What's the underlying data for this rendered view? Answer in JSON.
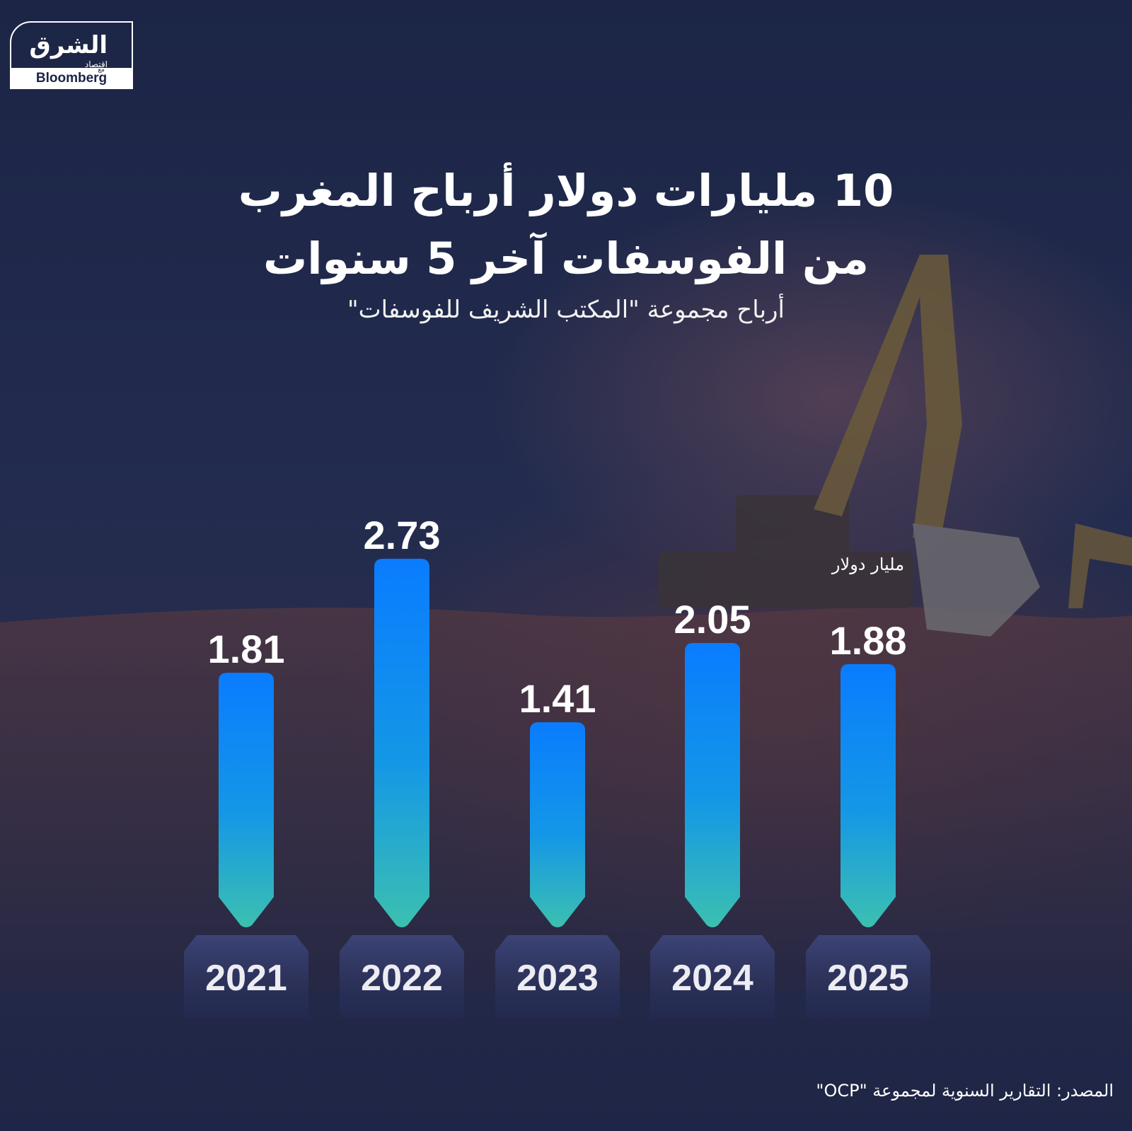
{
  "logo": {
    "brand": "الشرق",
    "sub": "اقتصاد",
    "with": "مع",
    "partner": "Bloomberg"
  },
  "title_line1": "10 مليارات دولار أرباح المغرب",
  "title_line2": "من الفوسفات آخر 5 سنوات",
  "subtitle": "أرباح مجموعة \"المكتب الشريف للفوسفات\"",
  "unit_label": "مليار دولار",
  "source": "المصدر: التقارير السنوية لمجموعة \"OCP\"",
  "colors": {
    "bar_top": "#0a7cff",
    "bar_bottom": "#3cc0b0",
    "background": "#1c2546"
  },
  "chart_data": {
    "type": "bar",
    "categories": [
      "2021",
      "2022",
      "2023",
      "2024",
      "2025"
    ],
    "values": [
      1.81,
      2.73,
      1.41,
      2.05,
      1.88
    ],
    "value_labels": [
      "1.81",
      "2.73",
      "1.41",
      "2.05",
      "1.88"
    ],
    "title": "10 مليارات دولار أرباح المغرب من الفوسفات آخر 5 سنوات",
    "subtitle": "أرباح مجموعة \"المكتب الشريف للفوسفات\"",
    "unit": "مليار دولار",
    "grid": false,
    "legend": "none"
  }
}
